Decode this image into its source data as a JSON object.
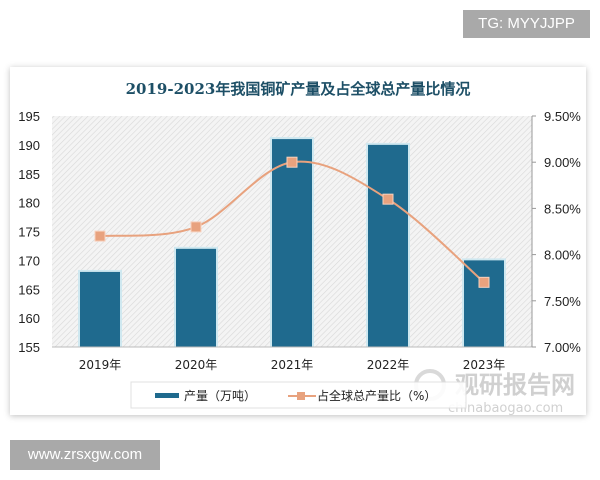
{
  "badges": {
    "top_right": "TG: MYYJJPP",
    "bottom_left": "www.zrsxgw.com"
  },
  "watermark": {
    "name": "观研报告网",
    "domain": "chinabaogao.com"
  },
  "chart_data": {
    "type": "bar+line",
    "title": "2019-2023年我国铜矿产量及占全球总产量比情况",
    "categories": [
      "2019年",
      "2020年",
      "2021年",
      "2022年",
      "2023年"
    ],
    "series": [
      {
        "name": "产量（万吨）",
        "type": "bar",
        "axis": "left",
        "values": [
          168,
          172,
          191,
          190,
          170
        ],
        "color": "#1f6a8e"
      },
      {
        "name": "占全球总产量比（%）",
        "type": "line",
        "axis": "right",
        "values": [
          8.2,
          8.3,
          9.0,
          8.6,
          7.7
        ],
        "color": "#e8a27e"
      }
    ],
    "y_left": {
      "range": [
        155,
        195
      ],
      "ticks": [
        "155",
        "160",
        "165",
        "170",
        "175",
        "180",
        "185",
        "190",
        "195"
      ]
    },
    "y_right": {
      "range": [
        7.0,
        9.5
      ],
      "ticks": [
        "7.00%",
        "7.50%",
        "8.00%",
        "8.50%",
        "9.00%",
        "9.50%"
      ]
    },
    "grid": false,
    "legend": "bottom"
  }
}
